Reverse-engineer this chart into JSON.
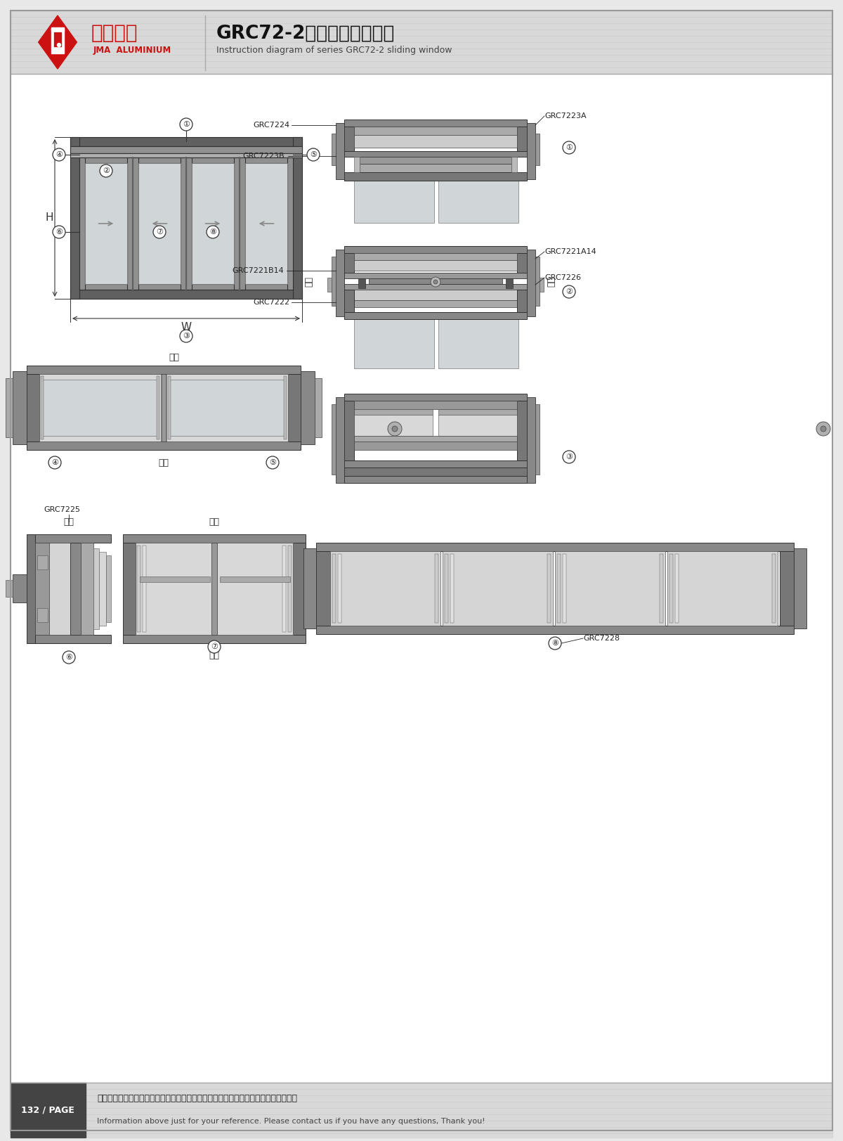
{
  "title_cn": "GRC72-2系列推拉窗结构图",
  "title_en": "Instruction diagram of series GRC72-2 sliding window",
  "company_cn": "坚美铝业",
  "company_en": "JMA  ALUMINIUM",
  "page_number": "132 / PAGE",
  "footer_cn": "图中所示型材截面、装配、编号、尺寸及重量仅供参考。如有疑问，请向本公司查询。",
  "footer_en": "Information above just for your reference. Please contact us if you have any questions, Thank you!",
  "bg_color": "#e8e8e8",
  "paper_color": "#ffffff",
  "frame_color": "#606060",
  "dark_gray": "#444444",
  "mid_gray": "#888888",
  "light_gray": "#cccccc",
  "very_light_gray": "#e8e8e8",
  "red_color": "#cc1111",
  "header_bg": "#d8d8d8",
  "labels": [
    "①",
    "②",
    "③",
    "④",
    "⑤",
    "⑥",
    "⑦",
    "⑧"
  ],
  "part_labels": [
    "GRC7224",
    "GRC7223A",
    "GRC7223B",
    "GRC7221A14",
    "GRC7221B14",
    "GRC7226",
    "GRC7222",
    "GRC7225",
    "GRC7228"
  ],
  "indoor": "室内",
  "outdoor": "室外",
  "H_label": "H",
  "W_label": "W"
}
